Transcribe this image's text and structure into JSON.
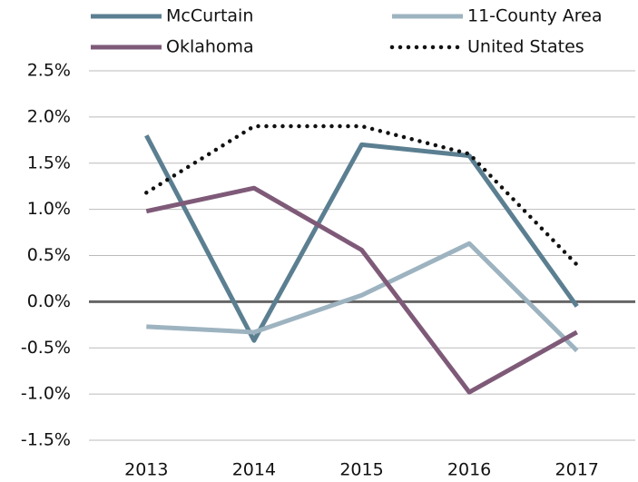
{
  "chart_data": {
    "type": "line",
    "categories": [
      "2013",
      "2014",
      "2015",
      "2016",
      "2017"
    ],
    "series": [
      {
        "name": "McCurtain",
        "color": "#5b7f91",
        "values": [
          1.8,
          -0.42,
          1.7,
          1.58,
          -0.05
        ]
      },
      {
        "name": "11-County Area",
        "color": "#9db3c0",
        "values": [
          -0.27,
          -0.33,
          0.07,
          0.63,
          -0.53
        ]
      },
      {
        "name": "Oklahoma",
        "color": "#7e5a78",
        "values": [
          0.98,
          1.23,
          0.56,
          -0.98,
          -0.33
        ]
      },
      {
        "name": "United States",
        "color": "#111111",
        "line_style": "dotted",
        "values": [
          1.18,
          1.9,
          1.9,
          1.6,
          0.4
        ]
      }
    ],
    "ylim": [
      -1.5,
      2.5
    ],
    "yticks": [
      {
        "value": -1.5,
        "label": "-1.5%"
      },
      {
        "value": -1.0,
        "label": "-1.0%"
      },
      {
        "value": -0.5,
        "label": "-0.5%"
      },
      {
        "value": 0.0,
        "label": "0.0%"
      },
      {
        "value": 0.5,
        "label": "0.5%"
      },
      {
        "value": 1.0,
        "label": "1.0%"
      },
      {
        "value": 1.5,
        "label": "1.5%"
      },
      {
        "value": 2.0,
        "label": "2.0%"
      },
      {
        "value": 2.5,
        "label": "2.5%"
      }
    ],
    "grid": true,
    "legend": "top"
  }
}
